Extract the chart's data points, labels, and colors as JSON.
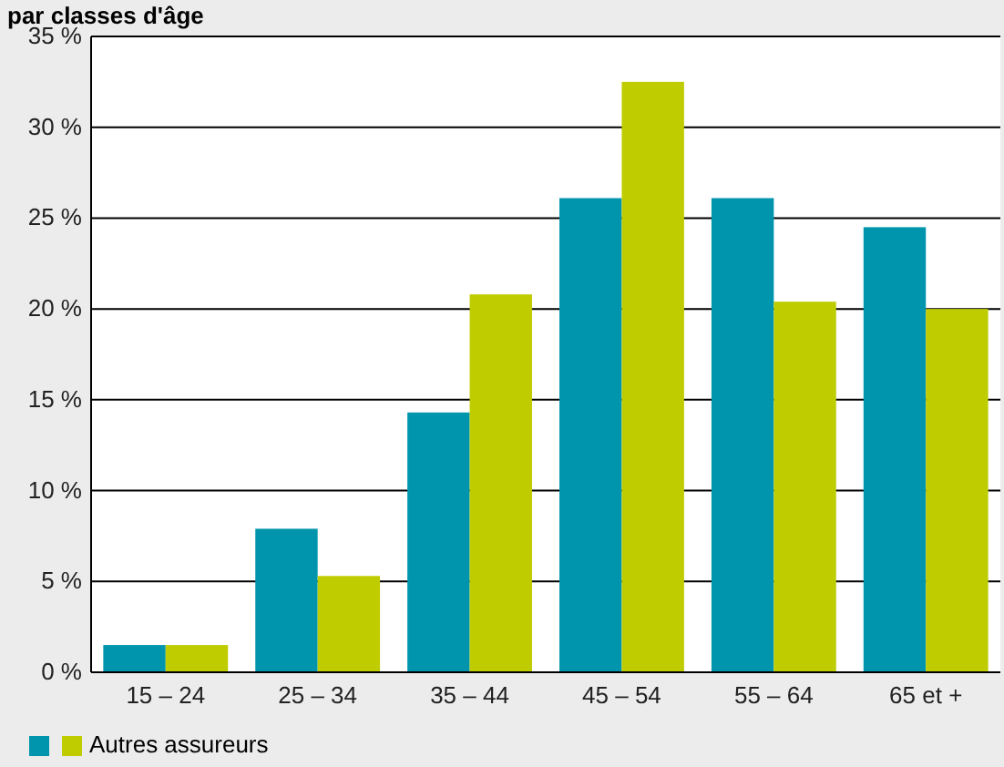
{
  "chart_data": {
    "type": "bar",
    "title": "par classes d'âge",
    "categories": [
      "15 – 24",
      "25 – 34",
      "35 – 44",
      "45 – 54",
      "55 – 64",
      "65 et +"
    ],
    "series": [
      {
        "color": "#0095ad",
        "values": [
          1.5,
          7.9,
          14.3,
          26.1,
          26.1,
          24.5
        ]
      },
      {
        "name": "Autres assureurs",
        "color": "#bfcc00",
        "values": [
          1.5,
          5.3,
          20.8,
          32.5,
          20.4,
          20.0
        ]
      }
    ],
    "ylim": [
      0,
      35
    ],
    "yticks": [
      {
        "value": 0,
        "label": "0 %"
      },
      {
        "value": 5,
        "label": "5 %"
      },
      {
        "value": 10,
        "label": "10 %"
      },
      {
        "value": 15,
        "label": "15 %"
      },
      {
        "value": 20,
        "label": "20 %"
      },
      {
        "value": 25,
        "label": "25 %"
      },
      {
        "value": 30,
        "label": "30 %"
      },
      {
        "value": 35,
        "label": "35 %"
      }
    ],
    "grid": "y",
    "legend": "bottom left"
  }
}
